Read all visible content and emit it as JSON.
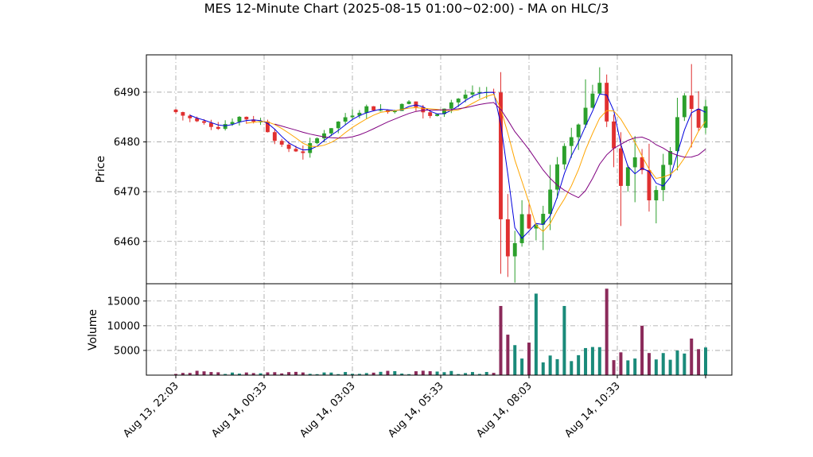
{
  "chart_data": {
    "type": "candlestick",
    "title": "MES 12-Minute Chart (2025-08-15 01:00~02:00) - MA on HLC/3",
    "price_panel": {
      "ylabel": "Price",
      "ylim": [
        6451.5,
        6497.5
      ],
      "yticks": [
        6460,
        6470,
        6480,
        6490
      ],
      "grid": true
    },
    "volume_panel": {
      "ylabel": "Volume",
      "ylim": [
        0,
        18500
      ],
      "yticks": [
        5000,
        10000,
        15000
      ],
      "grid": true
    },
    "x_tick_labels": [
      "Aug 13, 22:03",
      "Aug 14, 00:33",
      "Aug 14, 03:03",
      "Aug 14, 05:33",
      "Aug 14, 08:03",
      "Aug 14, 10:33"
    ],
    "x_tick_bar_index": [
      0,
      12.5,
      25,
      37.5,
      50,
      62.5
    ],
    "bar_count": 76,
    "colors": {
      "up": "#2ca02c",
      "down": "#e03030",
      "ma_fast": "#0000dd",
      "ma_mid": "#ffa500",
      "ma_slow": "#800080",
      "vol_up": "#1a8a7a",
      "vol_down": "#8b2a5a",
      "grid": "#a0a0a0"
    },
    "key_prices": {
      "open": 6486,
      "pre_drop_high": 6491,
      "drop_low": 6453.5,
      "spike_high": 6495,
      "late_low": 6466,
      "late_high": 6490,
      "close": 6486
    },
    "volume_peaks": [
      14000,
      16500,
      14000,
      17500,
      10000
    ]
  }
}
